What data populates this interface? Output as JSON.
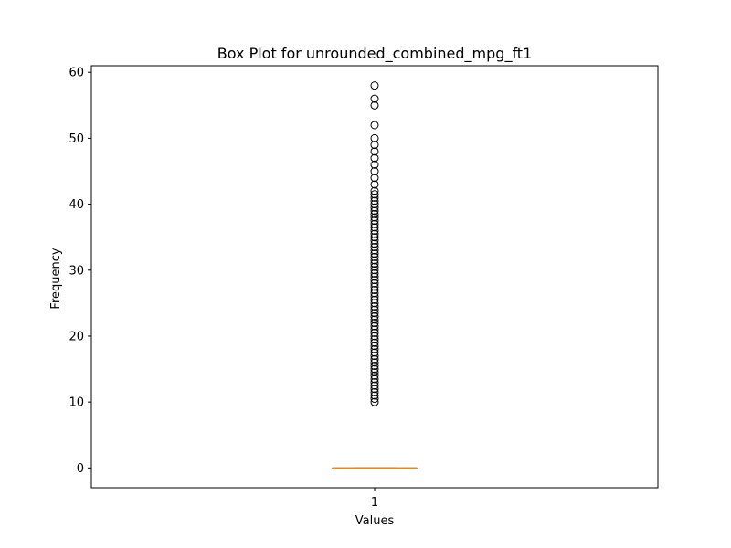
{
  "chart_data": {
    "type": "box",
    "title": "Box Plot for unrounded_combined_mpg_ft1",
    "xlabel": "Values",
    "ylabel": "Frequency",
    "ylim": [
      -3,
      61
    ],
    "yticks": [
      0,
      10,
      20,
      30,
      40,
      50,
      60
    ],
    "categories": [
      "1"
    ],
    "boxes": [
      {
        "category": "1",
        "q1": 0,
        "median": 0,
        "q3": 0,
        "whisker_low": 0,
        "whisker_high": 0,
        "outliers": [
          10,
          10.5,
          11,
          11.5,
          12,
          12.5,
          13,
          13.5,
          14,
          14.5,
          15,
          15.5,
          16,
          16.5,
          17,
          17.5,
          18,
          18.5,
          19,
          19.5,
          20,
          20.5,
          21,
          21.5,
          22,
          22.5,
          23,
          23.5,
          24,
          24.5,
          25,
          25.5,
          26,
          26.5,
          27,
          27.5,
          28,
          28.5,
          29,
          29.5,
          30,
          30.5,
          31,
          31.5,
          32,
          32.5,
          33,
          33.5,
          34,
          34.5,
          35,
          35.5,
          36,
          36.5,
          37,
          37.5,
          38,
          38.5,
          39,
          39.5,
          40,
          40.5,
          41,
          41.5,
          42,
          43,
          44,
          45,
          46,
          47,
          48,
          49,
          50,
          52,
          55,
          56,
          58
        ]
      }
    ],
    "grid": false,
    "colors": {
      "median": "#ff7f0e",
      "box": "#000000",
      "outlier_edge": "#000000"
    }
  }
}
